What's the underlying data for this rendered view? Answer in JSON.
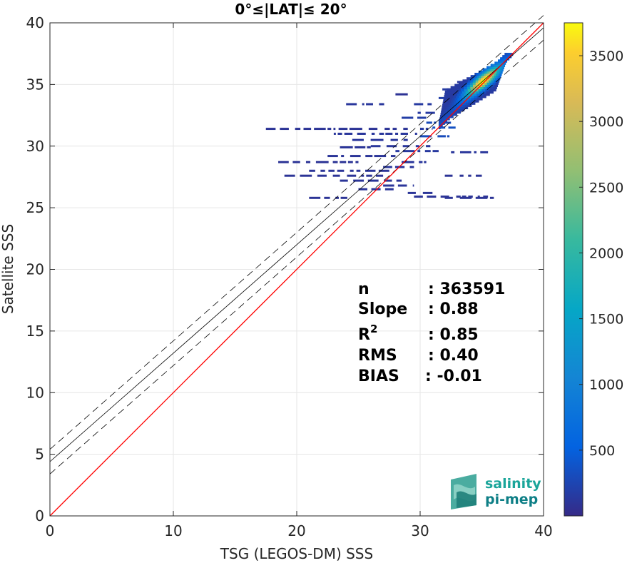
{
  "chart_data": {
    "type": "heatmap",
    "title": "0°≤|LAT|≤ 20°",
    "xlabel": "TSG (LEGOS-DM) SSS",
    "ylabel": "Satellite SSS",
    "xlim": [
      0,
      40
    ],
    "ylim": [
      0,
      40
    ],
    "xticks": [
      "0",
      "10",
      "20",
      "30",
      "40"
    ],
    "yticks": [
      "0",
      "5",
      "10",
      "15",
      "20",
      "25",
      "30",
      "35",
      "40"
    ],
    "grid": true,
    "identity_line": {
      "color": "#ff0000",
      "x": [
        0,
        40
      ],
      "y": [
        0,
        40
      ]
    },
    "fit_line": {
      "color": "#000000",
      "intercept": 4.4,
      "slope": 0.88,
      "x": [
        0,
        40
      ],
      "y": [
        4.4,
        39.6
      ]
    },
    "fit_bounds": [
      {
        "color": "#000000",
        "style": "dashed",
        "x": [
          0,
          40
        ],
        "y": [
          5.4,
          40.6
        ]
      },
      {
        "color": "#000000",
        "style": "dashed",
        "x": [
          0,
          40
        ],
        "y": [
          3.4,
          38.6
        ]
      }
    ],
    "density_core": {
      "x": [
        31.5,
        37.5
      ],
      "y": [
        31.5,
        37.5
      ]
    },
    "density_scatter_rows": [
      {
        "y": 35.2,
        "x": [
          33.0,
          34.5
        ],
        "c": 120
      },
      {
        "y": 34.6,
        "x": [
          31.8,
          33.4
        ],
        "c": 160
      },
      {
        "y": 34.2,
        "x": [
          28.0,
          29.0
        ],
        "c": 80
      },
      {
        "y": 33.9,
        "x": [
          31.5,
          34.0
        ],
        "c": 200
      },
      {
        "y": 33.4,
        "x": [
          24.0,
          27.5
        ],
        "c": 120
      },
      {
        "y": 33.4,
        "x": [
          29.5,
          31.0
        ],
        "c": 150
      },
      {
        "y": 32.7,
        "x": [
          29.8,
          31.2
        ],
        "c": 150
      },
      {
        "y": 32.3,
        "x": [
          28.5,
          30.5
        ],
        "c": 180
      },
      {
        "y": 31.9,
        "x": [
          30.5,
          32.5
        ],
        "c": 300
      },
      {
        "y": 31.5,
        "x": [
          31.0,
          33.0
        ],
        "c": 350
      },
      {
        "y": 31.4,
        "x": [
          17.5,
          29.0
        ],
        "c": 90
      },
      {
        "y": 31.4,
        "x": [
          30.0,
          31.0
        ],
        "c": 150
      },
      {
        "y": 31.0,
        "x": [
          23.0,
          30.0
        ],
        "c": 120
      },
      {
        "y": 30.8,
        "x": [
          30.0,
          32.5
        ],
        "c": 300
      },
      {
        "y": 30.5,
        "x": [
          24.5,
          29.0
        ],
        "c": 120
      },
      {
        "y": 30.0,
        "x": [
          26.0,
          31.0
        ],
        "c": 120
      },
      {
        "y": 29.9,
        "x": [
          23.5,
          26.0
        ],
        "c": 100
      },
      {
        "y": 29.6,
        "x": [
          28.0,
          31.5
        ],
        "c": 140
      },
      {
        "y": 29.5,
        "x": [
          32.5,
          35.5
        ],
        "c": 120
      },
      {
        "y": 29.2,
        "x": [
          22.5,
          28.0
        ],
        "c": 100
      },
      {
        "y": 28.7,
        "x": [
          18.5,
          25.0
        ],
        "c": 90
      },
      {
        "y": 28.7,
        "x": [
          28.5,
          30.5
        ],
        "c": 120
      },
      {
        "y": 28.3,
        "x": [
          27.0,
          29.5
        ],
        "c": 120
      },
      {
        "y": 28.0,
        "x": [
          21.0,
          27.5
        ],
        "c": 100
      },
      {
        "y": 27.6,
        "x": [
          19.0,
          27.0
        ],
        "c": 90
      },
      {
        "y": 27.6,
        "x": [
          32.0,
          35.0
        ],
        "c": 90
      },
      {
        "y": 27.2,
        "x": [
          23.5,
          28.5
        ],
        "c": 100
      },
      {
        "y": 26.8,
        "x": [
          27.0,
          29.5
        ],
        "c": 110
      },
      {
        "y": 26.5,
        "x": [
          25.0,
          28.0
        ],
        "c": 100
      },
      {
        "y": 26.2,
        "x": [
          29.0,
          31.0
        ],
        "c": 100
      },
      {
        "y": 25.9,
        "x": [
          29.5,
          35.5
        ],
        "c": 90
      },
      {
        "y": 25.8,
        "x": [
          21.0,
          24.5
        ],
        "c": 90
      },
      {
        "y": 25.8,
        "x": [
          32.0,
          36.0
        ],
        "c": 90
      }
    ]
  },
  "colorbar": {
    "min": 0,
    "max": 3750,
    "ticks": [
      "500",
      "1000",
      "1500",
      "2000",
      "2500",
      "3000",
      "3500"
    ],
    "tick_values": [
      500,
      1000,
      1500,
      2000,
      2500,
      3000,
      3500
    ],
    "colormap": "parula"
  },
  "stats": {
    "rows": [
      {
        "label": "n",
        "value": ": 363591"
      },
      {
        "label": "Slope",
        "value": ": 0.88"
      },
      {
        "label": "R",
        "sup": "2",
        "value": ": 0.85"
      },
      {
        "label": "RMS",
        "value": ": 0.40"
      },
      {
        "label": "BIAS",
        "value": ": -0.01"
      }
    ]
  },
  "logo": {
    "line1": "salinity",
    "line2": "pi-mep",
    "color1": "#1aa59a",
    "color2": "#0e7f86"
  }
}
